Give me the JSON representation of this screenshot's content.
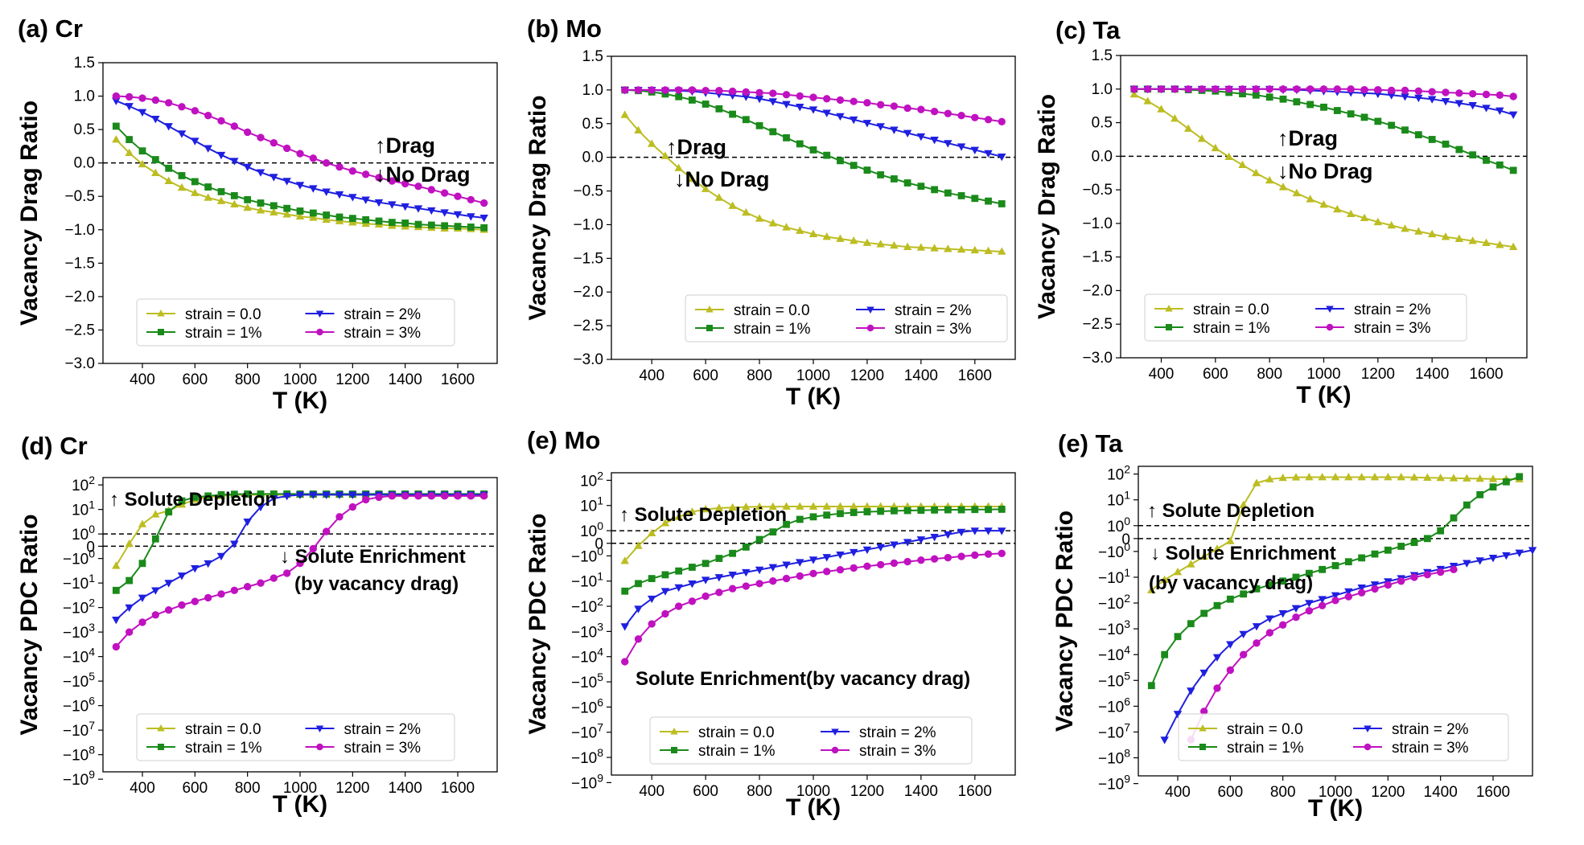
{
  "colors": {
    "strain_0": "#bcbd22",
    "strain_1": "#1a8a1a",
    "strain_2": "#1f1fe0",
    "strain_3": "#c011c0"
  },
  "chart_data": [
    {
      "id": "a",
      "type": "line",
      "label": "(a) Cr",
      "xlabel": "T (K)",
      "ylabel": "Vacancy Drag Ratio",
      "xlim": [
        250,
        1750
      ],
      "ylim": [
        -3.0,
        1.5
      ],
      "xticks": [
        "400",
        "600",
        "800",
        "1000",
        "1200",
        "1400",
        "1600"
      ],
      "yticks": [
        "1.5",
        "1.0",
        "0.5",
        "0.0",
        "−0.5",
        "−1.0",
        "−1.5",
        "−2.0",
        "−2.5",
        "−3.0"
      ],
      "annotations": [
        "↑Drag",
        "↓No Drag"
      ],
      "legend": [
        "strain = 0.0",
        "strain = 1%",
        "strain = 2%",
        "strain = 3%"
      ],
      "series": [
        {
          "name": "strain = 0.0",
          "marker": "triangle-up",
          "values": [
            0.35,
            0.15,
            -0.02,
            -0.15,
            -0.27,
            -0.37,
            -0.45,
            -0.52,
            -0.57,
            -0.62,
            -0.67,
            -0.71,
            -0.74,
            -0.77,
            -0.8,
            -0.82,
            -0.85,
            -0.87,
            -0.89,
            -0.91,
            -0.92,
            -0.94,
            -0.95,
            -0.96,
            -0.97,
            -0.98,
            -0.98,
            -0.99,
            -1.0
          ]
        },
        {
          "name": "strain = 1%",
          "marker": "square",
          "values": [
            0.55,
            0.35,
            0.18,
            0.05,
            -0.08,
            -0.19,
            -0.28,
            -0.36,
            -0.43,
            -0.49,
            -0.55,
            -0.6,
            -0.64,
            -0.68,
            -0.72,
            -0.75,
            -0.78,
            -0.81,
            -0.83,
            -0.85,
            -0.87,
            -0.89,
            -0.9,
            -0.92,
            -0.93,
            -0.94,
            -0.95,
            -0.96,
            -0.97
          ]
        },
        {
          "name": "strain = 2%",
          "marker": "triangle-down",
          "values": [
            0.93,
            0.85,
            0.76,
            0.66,
            0.55,
            0.44,
            0.33,
            0.22,
            0.12,
            0.03,
            -0.06,
            -0.14,
            -0.21,
            -0.27,
            -0.33,
            -0.38,
            -0.43,
            -0.47,
            -0.51,
            -0.55,
            -0.59,
            -0.62,
            -0.65,
            -0.68,
            -0.71,
            -0.74,
            -0.77,
            -0.8,
            -0.82
          ]
        },
        {
          "name": "strain = 3%",
          "marker": "circle",
          "values": [
            1.0,
            0.99,
            0.97,
            0.94,
            0.9,
            0.84,
            0.78,
            0.71,
            0.63,
            0.55,
            0.46,
            0.38,
            0.3,
            0.22,
            0.14,
            0.07,
            0.0,
            -0.06,
            -0.12,
            -0.17,
            -0.22,
            -0.27,
            -0.31,
            -0.35,
            -0.4,
            -0.45,
            -0.5,
            -0.55,
            -0.6
          ]
        }
      ]
    },
    {
      "id": "b",
      "type": "line",
      "label": "(b) Mo",
      "xlabel": "T (K)",
      "ylabel": "Vacancy Drag Ratio",
      "xlim": [
        250,
        1750
      ],
      "ylim": [
        -3.0,
        1.5
      ],
      "xticks": [
        "400",
        "600",
        "800",
        "1000",
        "1200",
        "1400",
        "1600"
      ],
      "yticks": [
        "1.5",
        "1.0",
        "0.5",
        "0.0",
        "−0.5",
        "−1.0",
        "−1.5",
        "−2.0",
        "−2.5",
        "−3.0"
      ],
      "annotations": [
        "↑Drag",
        "↓No Drag"
      ],
      "legend": [
        "strain = 0.0",
        "strain = 1%",
        "strain = 2%",
        "strain = 3%"
      ],
      "series": [
        {
          "name": "strain = 0.0",
          "marker": "triangle-up",
          "values": [
            0.63,
            0.4,
            0.2,
            0.02,
            -0.16,
            -0.32,
            -0.47,
            -0.6,
            -0.72,
            -0.82,
            -0.91,
            -0.98,
            -1.04,
            -1.09,
            -1.14,
            -1.18,
            -1.21,
            -1.24,
            -1.27,
            -1.29,
            -1.31,
            -1.33,
            -1.34,
            -1.35,
            -1.36,
            -1.37,
            -1.38,
            -1.39,
            -1.4
          ]
        },
        {
          "name": "strain = 1%",
          "marker": "square",
          "values": [
            1.0,
            0.99,
            0.97,
            0.94,
            0.9,
            0.85,
            0.79,
            0.72,
            0.64,
            0.56,
            0.47,
            0.38,
            0.29,
            0.2,
            0.11,
            0.03,
            -0.05,
            -0.12,
            -0.19,
            -0.26,
            -0.32,
            -0.38,
            -0.43,
            -0.48,
            -0.53,
            -0.57,
            -0.61,
            -0.65,
            -0.69
          ]
        },
        {
          "name": "strain = 2%",
          "marker": "triangle-down",
          "values": [
            1.0,
            1.0,
            1.0,
            0.99,
            0.99,
            0.98,
            0.96,
            0.94,
            0.92,
            0.9,
            0.87,
            0.83,
            0.79,
            0.75,
            0.71,
            0.66,
            0.61,
            0.56,
            0.51,
            0.46,
            0.41,
            0.36,
            0.31,
            0.26,
            0.21,
            0.16,
            0.11,
            0.06,
            0.01
          ]
        },
        {
          "name": "strain = 3%",
          "marker": "circle",
          "values": [
            1.0,
            1.0,
            1.0,
            1.0,
            1.0,
            1.0,
            0.99,
            0.99,
            0.98,
            0.97,
            0.96,
            0.95,
            0.93,
            0.91,
            0.89,
            0.87,
            0.85,
            0.83,
            0.81,
            0.78,
            0.76,
            0.73,
            0.71,
            0.68,
            0.65,
            0.62,
            0.59,
            0.56,
            0.53
          ]
        }
      ]
    },
    {
      "id": "c",
      "type": "line",
      "label": "(c) Ta",
      "xlabel": "T (K)",
      "ylabel": "Vacancy Drag Ratio",
      "xlim": [
        250,
        1750
      ],
      "ylim": [
        -3.0,
        1.5
      ],
      "xticks": [
        "400",
        "600",
        "800",
        "1000",
        "1200",
        "1400",
        "1600"
      ],
      "yticks": [
        "1.5",
        "1.0",
        "0.5",
        "0.0",
        "−0.5",
        "−1.0",
        "−1.5",
        "−2.0",
        "−2.5",
        "−3.0"
      ],
      "annotations": [
        "↑Drag",
        "↓No Drag"
      ],
      "legend": [
        "strain = 0.0",
        "strain = 1%",
        "strain = 2%",
        "strain = 3%"
      ],
      "series": [
        {
          "name": "strain = 0.0",
          "marker": "triangle-up",
          "values": [
            0.92,
            0.82,
            0.7,
            0.56,
            0.41,
            0.26,
            0.12,
            -0.01,
            -0.13,
            -0.25,
            -0.36,
            -0.46,
            -0.55,
            -0.64,
            -0.72,
            -0.79,
            -0.86,
            -0.92,
            -0.98,
            -1.03,
            -1.08,
            -1.12,
            -1.16,
            -1.2,
            -1.23,
            -1.26,
            -1.29,
            -1.32,
            -1.35
          ]
        },
        {
          "name": "strain = 1%",
          "marker": "square",
          "values": [
            1.0,
            1.0,
            1.0,
            1.0,
            0.99,
            0.98,
            0.97,
            0.95,
            0.93,
            0.91,
            0.88,
            0.85,
            0.81,
            0.77,
            0.73,
            0.68,
            0.63,
            0.58,
            0.52,
            0.46,
            0.39,
            0.32,
            0.25,
            0.18,
            0.1,
            0.02,
            -0.06,
            -0.13,
            -0.21
          ]
        },
        {
          "name": "strain = 2%",
          "marker": "triangle-down",
          "values": [
            1.0,
            1.0,
            1.0,
            1.0,
            1.0,
            1.0,
            1.0,
            1.0,
            1.0,
            1.0,
            1.0,
            0.99,
            0.99,
            0.98,
            0.97,
            0.96,
            0.95,
            0.94,
            0.93,
            0.91,
            0.89,
            0.87,
            0.85,
            0.82,
            0.79,
            0.76,
            0.72,
            0.68,
            0.62
          ]
        },
        {
          "name": "strain = 3%",
          "marker": "circle",
          "values": [
            1.0,
            1.0,
            1.0,
            1.0,
            1.0,
            1.0,
            1.0,
            1.0,
            1.0,
            1.0,
            1.0,
            1.0,
            1.0,
            1.0,
            1.0,
            1.0,
            1.0,
            0.99,
            0.99,
            0.98,
            0.98,
            0.97,
            0.96,
            0.95,
            0.94,
            0.93,
            0.92,
            0.91,
            0.89
          ]
        }
      ]
    },
    {
      "id": "d",
      "type": "line",
      "label": "(d) Cr",
      "xlabel": "T (K)",
      "ylabel": "Vacancy PDC Ratio",
      "xlim": [
        250,
        1750
      ],
      "yscale": "symlog",
      "ylim_exponent": [
        -9,
        2
      ],
      "xticks": [
        "400",
        "600",
        "800",
        "1000",
        "1200",
        "1400",
        "1600"
      ],
      "annotations": [
        "↑ Solute Depletion",
        "↓ Solute Enrichment",
        "(by vacancy drag)"
      ],
      "legend": [
        "strain = 0.0",
        "strain = 1%",
        "strain = 2%",
        "strain = 3%"
      ],
      "series": [
        {
          "name": "strain = 0.0",
          "marker": "triangle-up",
          "values": [
            -1.3,
            -0.4,
            0.4,
            0.8,
            0.95,
            1.2,
            1.4,
            1.5,
            1.55,
            1.6,
            1.6,
            1.6,
            1.6,
            1.6,
            1.6,
            1.6,
            1.6,
            1.6,
            1.6,
            1.6,
            1.6,
            1.6,
            1.6,
            1.6,
            1.6,
            1.6,
            1.6,
            1.6,
            1.6
          ]
        },
        {
          "name": "strain = 1%",
          "marker": "square",
          "values": [
            -2.3,
            -1.9,
            -1.2,
            -0.2,
            0.9,
            1.35,
            1.5,
            1.55,
            1.6,
            1.62,
            1.63,
            1.63,
            1.63,
            1.63,
            1.63,
            1.63,
            1.63,
            1.63,
            1.63,
            1.63,
            1.63,
            1.63,
            1.63,
            1.63,
            1.63,
            1.63,
            1.63,
            1.63,
            1.63
          ]
        },
        {
          "name": "strain = 2%",
          "marker": "triangle-down",
          "values": [
            -3.5,
            -3.0,
            -2.6,
            -2.3,
            -2.0,
            -1.7,
            -1.4,
            -1.2,
            -0.9,
            -0.4,
            0.5,
            1.1,
            1.45,
            1.55,
            1.6,
            1.6,
            1.6,
            1.6,
            1.6,
            1.6,
            1.6,
            1.6,
            1.6,
            1.6,
            1.6,
            1.6,
            1.6,
            1.6,
            1.6
          ]
        },
        {
          "name": "strain = 3%",
          "marker": "circle",
          "values": [
            -4.6,
            -4.0,
            -3.6,
            -3.3,
            -3.1,
            -2.9,
            -2.75,
            -2.6,
            -2.45,
            -2.3,
            -2.15,
            -2.0,
            -1.8,
            -1.6,
            -1.2,
            -0.6,
            0.1,
            0.7,
            1.1,
            1.4,
            1.5,
            1.55,
            1.55,
            1.55,
            1.55,
            1.55,
            1.55,
            1.55,
            1.55
          ]
        }
      ]
    },
    {
      "id": "e1",
      "type": "line",
      "label": "(e) Mo",
      "xlabel": "T (K)",
      "ylabel": "Vacancy PDC Ratio",
      "xlim": [
        250,
        1750
      ],
      "yscale": "symlog",
      "ylim_exponent": [
        -9,
        2
      ],
      "xticks": [
        "400",
        "600",
        "800",
        "1000",
        "1200",
        "1400",
        "1600"
      ],
      "annotations": [
        "↑ Solute Depletion",
        "Solute Enrichment(by vacancy drag)"
      ],
      "legend": [
        "strain = 0.0",
        "strain = 1%",
        "strain = 2%",
        "strain = 3%"
      ],
      "series": [
        {
          "name": "strain = 0.0",
          "marker": "triangle-up",
          "values": [
            -1.2,
            -0.6,
            -0.1,
            0.3,
            0.55,
            0.75,
            0.85,
            0.9,
            0.92,
            0.94,
            0.95,
            0.95,
            0.96,
            0.96,
            0.96,
            0.96,
            0.96,
            0.96,
            0.96,
            0.96,
            0.96,
            0.96,
            0.96,
            0.96,
            0.96,
            0.96,
            0.96,
            0.96,
            0.96
          ]
        },
        {
          "name": "strain = 1%",
          "marker": "square",
          "values": [
            -2.4,
            -2.1,
            -1.9,
            -1.75,
            -1.6,
            -1.45,
            -1.3,
            -1.1,
            -0.9,
            -0.65,
            -0.35,
            -0.05,
            0.25,
            0.45,
            0.55,
            0.62,
            0.68,
            0.72,
            0.75,
            0.77,
            0.79,
            0.8,
            0.81,
            0.82,
            0.83,
            0.83,
            0.84,
            0.84,
            0.85
          ]
        },
        {
          "name": "strain = 2%",
          "marker": "triangle-down",
          "values": [
            -3.8,
            -3.1,
            -2.7,
            -2.4,
            -2.25,
            -2.1,
            -1.95,
            -1.85,
            -1.75,
            -1.65,
            -1.55,
            -1.45,
            -1.35,
            -1.25,
            -1.15,
            -1.05,
            -0.95,
            -0.85,
            -0.75,
            -0.65,
            -0.55,
            -0.45,
            -0.35,
            -0.25,
            -0.15,
            -0.05,
            0.0,
            0.0,
            0.0
          ]
        },
        {
          "name": "strain = 3%",
          "marker": "circle",
          "values": [
            -5.2,
            -4.3,
            -3.7,
            -3.3,
            -3.0,
            -2.8,
            -2.6,
            -2.45,
            -2.3,
            -2.2,
            -2.1,
            -2.0,
            -1.9,
            -1.8,
            -1.7,
            -1.62,
            -1.55,
            -1.48,
            -1.41,
            -1.35,
            -1.29,
            -1.23,
            -1.17,
            -1.12,
            -1.07,
            -1.02,
            -0.97,
            -0.93,
            -0.9
          ]
        }
      ]
    },
    {
      "id": "e2",
      "type": "line",
      "label": "(e) Ta",
      "xlabel": "T (K)",
      "ylabel": "Vacancy PDC Ratio",
      "xlim": [
        250,
        1750
      ],
      "yscale": "symlog",
      "ylim_exponent": [
        -9,
        2
      ],
      "xticks": [
        "400",
        "600",
        "800",
        "1000",
        "1200",
        "1400",
        "1600"
      ],
      "annotations": [
        "↑ Solute Depletion",
        "↓ Solute Enrichment",
        "(by vacancy drag)"
      ],
      "legend": [
        "strain = 0.0",
        "strain = 1%",
        "strain = 2%",
        "strain = 3%"
      ],
      "series": [
        {
          "name": "strain = 0.0",
          "marker": "triangle-up",
          "values": [
            -2.5,
            -2.1,
            -1.8,
            -1.5,
            -1.2,
            -0.9,
            -0.6,
            0.8,
            1.65,
            1.8,
            1.85,
            1.87,
            1.88,
            1.88,
            1.88,
            1.88,
            1.88,
            1.88,
            1.88,
            1.88,
            1.87,
            1.86,
            1.85,
            1.84,
            1.83,
            1.82,
            1.81,
            1.8,
            1.8
          ]
        },
        {
          "name": "strain = 1%",
          "marker": "square",
          "values": [
            -6.2,
            -5.0,
            -4.3,
            -3.8,
            -3.4,
            -3.1,
            -2.85,
            -2.65,
            -2.45,
            -2.3,
            -2.15,
            -2.0,
            -1.85,
            -1.7,
            -1.55,
            -1.4,
            -1.25,
            -1.1,
            -0.95,
            -0.8,
            -0.65,
            -0.5,
            -0.2,
            0.3,
            0.8,
            1.2,
            1.5,
            1.7,
            1.9
          ]
        },
        {
          "name": "strain = 2%",
          "marker": "triangle-down",
          "values": [
            -8.3,
            -7.3,
            -6.4,
            -5.7,
            -5.1,
            -4.6,
            -4.2,
            -3.9,
            -3.6,
            -3.4,
            -3.2,
            -3.0,
            -2.85,
            -2.7,
            -2.55,
            -2.4,
            -2.28,
            -2.16,
            -2.04,
            -1.92,
            -1.8,
            -1.68,
            -1.56,
            -1.45,
            -1.35,
            -1.25,
            -1.15,
            -1.05,
            -0.95
          ]
        },
        {
          "name": "strain = 3%",
          "marker": "circle",
          "values": [
            -8.3,
            -7.2,
            -6.3,
            -5.6,
            -5.0,
            -4.55,
            -4.15,
            -3.85,
            -3.55,
            -3.3,
            -3.1,
            -2.9,
            -2.75,
            -2.6,
            -2.45,
            -2.3,
            -2.15,
            -2.0,
            -1.9,
            -1.8,
            -1.7
          ]
        }
      ]
    }
  ]
}
